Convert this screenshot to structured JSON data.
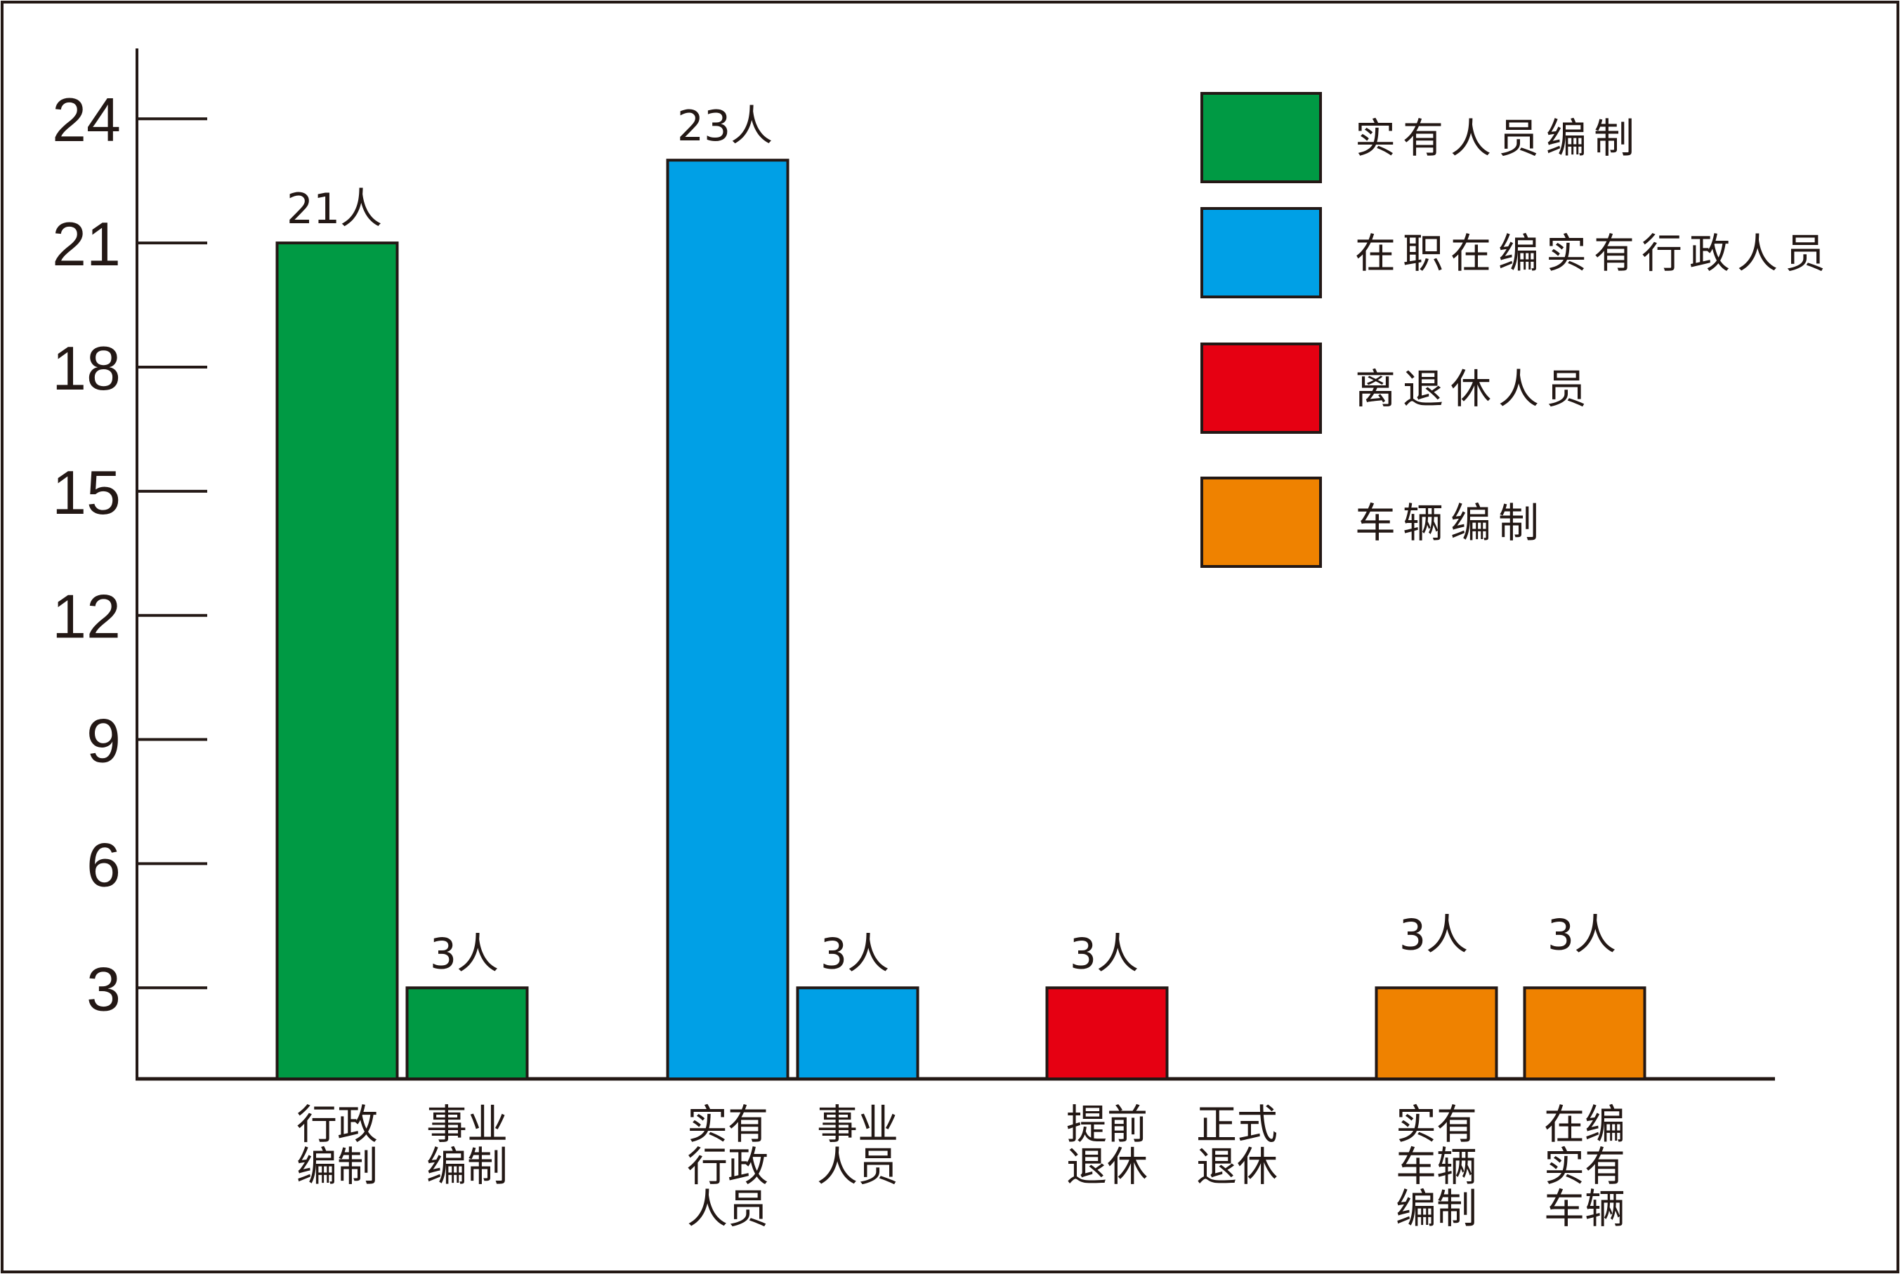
{
  "chart_data": {
    "type": "bar",
    "title": "",
    "xlabel": "",
    "ylabel": "",
    "ylim": [
      0.8,
      25.7
    ],
    "yticks": [
      3,
      6,
      9,
      12,
      15,
      18,
      21,
      24
    ],
    "grid": false,
    "legend_position": "top-right",
    "categories": [
      "行政编制",
      "事业编制",
      "实有行政人员",
      "事业人员",
      "提前退休",
      "正式退休",
      "实有车辆编制",
      "在编实有车辆"
    ],
    "values": [
      21,
      3,
      23,
      3,
      3,
      null,
      3,
      3
    ],
    "data_labels": [
      "21人",
      "3人",
      "23人",
      "3人",
      "3人",
      null,
      "3人",
      "3人"
    ],
    "bar_series": [
      0,
      0,
      1,
      1,
      2,
      2,
      3,
      3
    ],
    "series": [
      {
        "name": "实有人员编制",
        "color": "#009a44"
      },
      {
        "name": "在职在编实有行政人员",
        "color": "#00a0e6"
      },
      {
        "name": "离退休人员",
        "color": "#e60012"
      },
      {
        "name": "车辆编制",
        "color": "#ef8200"
      }
    ],
    "outline_color": "#231815"
  }
}
